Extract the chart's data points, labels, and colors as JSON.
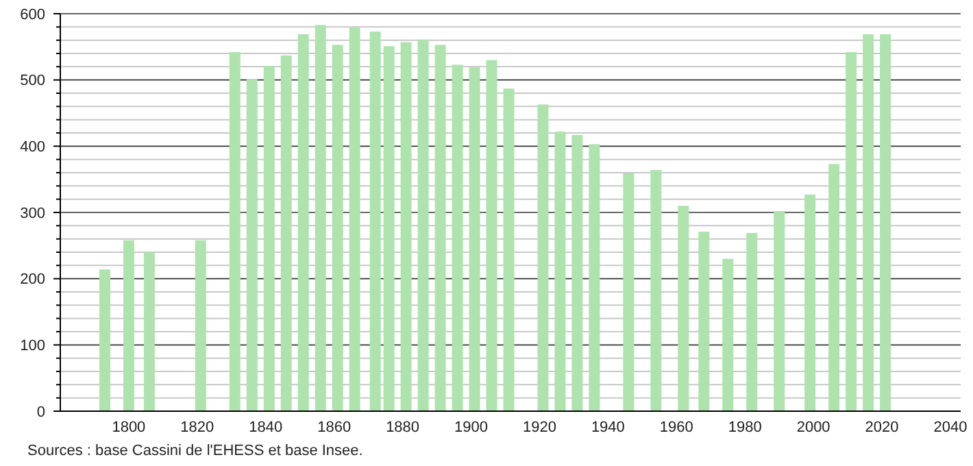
{
  "chart_data": {
    "type": "bar",
    "x": [
      1793,
      1800,
      1806,
      1821,
      1831,
      1836,
      1841,
      1846,
      1851,
      1856,
      1861,
      1866,
      1872,
      1876,
      1881,
      1886,
      1891,
      1896,
      1901,
      1906,
      1911,
      1921,
      1926,
      1931,
      1936,
      1946,
      1954,
      1962,
      1968,
      1975,
      1982,
      1990,
      1999,
      2006,
      2011,
      2016,
      2021
    ],
    "values": [
      214,
      258,
      240,
      258,
      542,
      501,
      521,
      537,
      569,
      583,
      553,
      579,
      573,
      551,
      557,
      561,
      553,
      523,
      519,
      530,
      487,
      463,
      422,
      417,
      403,
      359,
      364,
      310,
      271,
      230,
      269,
      302,
      327,
      373,
      542,
      569,
      569
    ],
    "color": "#aee3ae",
    "xlim": [
      1778,
      2043
    ],
    "xticks": [
      1800,
      1820,
      1840,
      1860,
      1880,
      1900,
      1920,
      1940,
      1960,
      1980,
      2000,
      2020,
      2040
    ],
    "ylim": [
      0,
      600
    ],
    "yticks": [
      0,
      100,
      200,
      300,
      400,
      500,
      600
    ],
    "grid": "y",
    "annotations": [
      "Sources : base Cassini de l'EHESS et base Insee."
    ]
  }
}
